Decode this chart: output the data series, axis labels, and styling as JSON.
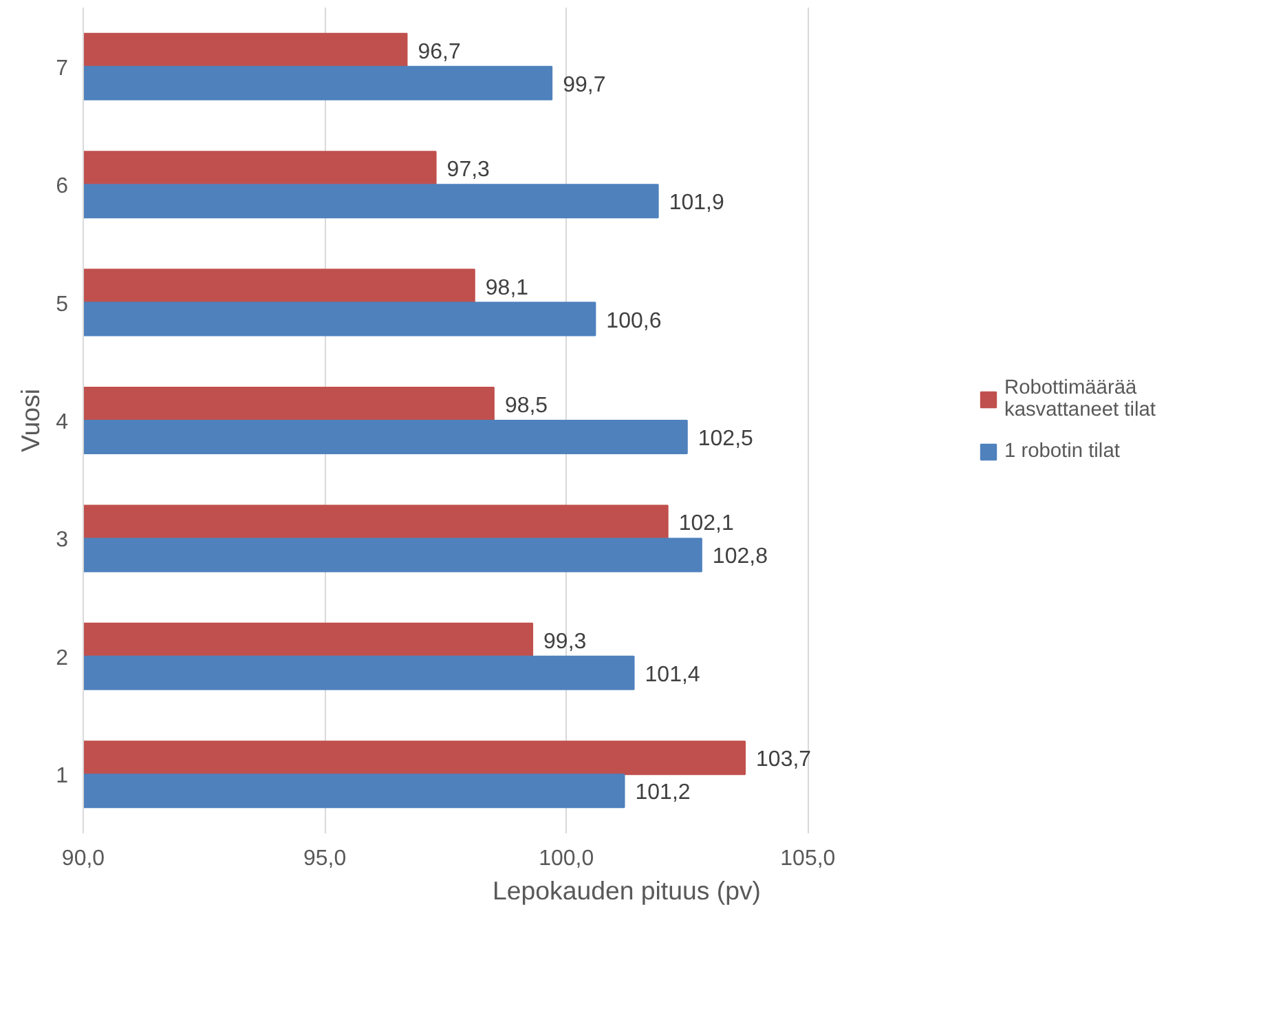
{
  "chart_data": {
    "type": "bar",
    "orientation": "horizontal",
    "categories": [
      "7",
      "6",
      "5",
      "4",
      "3",
      "2",
      "1"
    ],
    "series": [
      {
        "name": "Robottimäärää kasvattaneet tilat",
        "color": "#c0504d",
        "values": [
          96.7,
          97.3,
          98.1,
          98.5,
          102.1,
          99.3,
          103.7
        ],
        "value_labels": [
          "96,7",
          "97,3",
          "98,1",
          "98,5",
          "102,1",
          "99,3",
          "103,7"
        ]
      },
      {
        "name": "1 robotin tilat",
        "color": "#4f81bd",
        "values": [
          99.7,
          101.9,
          100.6,
          102.5,
          102.8,
          101.4,
          101.2
        ],
        "value_labels": [
          "99,7",
          "101,9",
          "100,6",
          "102,5",
          "102,8",
          "101,4",
          "101,2"
        ]
      }
    ],
    "xlabel": "Lepokauden pituus (pv)",
    "ylabel": "Vuosi",
    "xlim": [
      90,
      105
    ],
    "xticks": [
      {
        "value": 90,
        "label": "90,0"
      },
      {
        "value": 95,
        "label": "95,0"
      },
      {
        "value": 100,
        "label": "100,0"
      },
      {
        "value": 105,
        "label": "105,0"
      }
    ],
    "grid": "x",
    "legend": "right"
  }
}
